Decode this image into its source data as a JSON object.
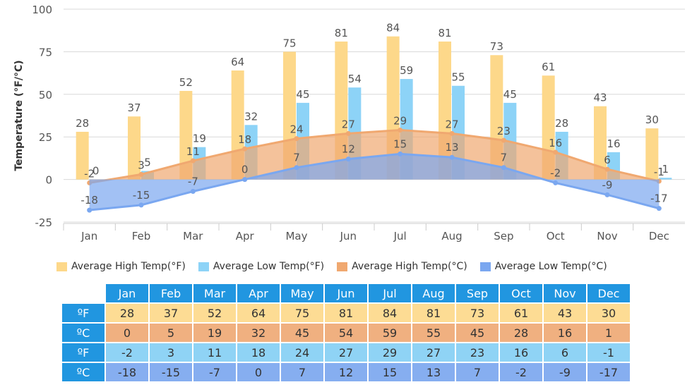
{
  "chart_data": {
    "type": "bar+area",
    "ylabel": "Temperature (°F/°C)",
    "ylim": [
      -25,
      100
    ],
    "yticks": [
      -25,
      0,
      25,
      50,
      75,
      100
    ],
    "grid": true,
    "legend_position": "bottom",
    "categories": [
      "Jan",
      "Feb",
      "Mar",
      "Apr",
      "May",
      "Jun",
      "Jul",
      "Aug",
      "Sep",
      "Oct",
      "Nov",
      "Dec"
    ],
    "series": [
      {
        "name": "Average High Temp(°F)",
        "type": "bar",
        "color": "#fdd88a",
        "values": [
          28,
          37,
          52,
          64,
          75,
          81,
          84,
          81,
          73,
          61,
          43,
          30
        ]
      },
      {
        "name": "Average Low Temp(°F)",
        "type": "bar",
        "color": "#8dd3f7",
        "values": [
          0,
          5,
          19,
          32,
          45,
          54,
          59,
          55,
          45,
          28,
          16,
          1
        ]
      },
      {
        "name": "Average High Temp(°C)",
        "type": "area",
        "color": "#f0a870",
        "values": [
          -2,
          3,
          11,
          18,
          24,
          27,
          29,
          27,
          23,
          16,
          6,
          -1
        ]
      },
      {
        "name": "Average Low Temp(°C)",
        "type": "area",
        "color": "#7aa7f0",
        "values": [
          -18,
          -15,
          -7,
          0,
          7,
          12,
          15,
          13,
          7,
          -2,
          -9,
          -17
        ]
      }
    ]
  },
  "table": {
    "row_labels": [
      "ºF",
      "ºC",
      "ºF",
      "ºC"
    ],
    "row_colors": [
      "#fddc94",
      "#f0b080",
      "#8fd3f5",
      "#86aef0"
    ]
  }
}
